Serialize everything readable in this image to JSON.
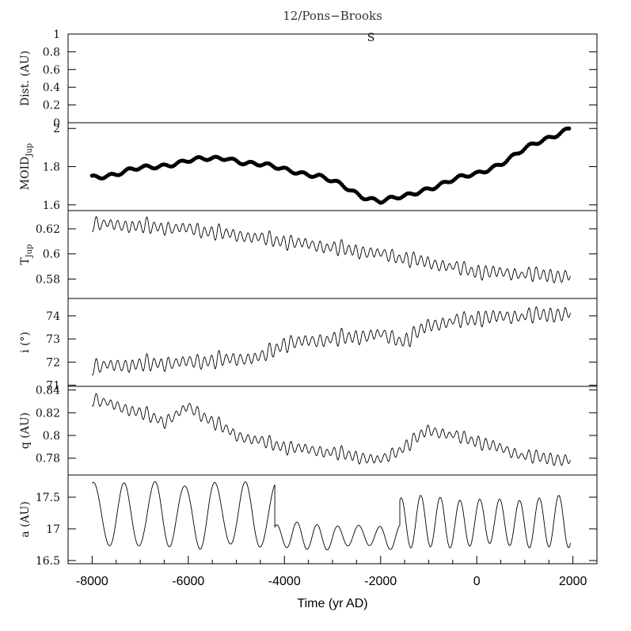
{
  "chart_data": {
    "type": "line",
    "title": "12/Pons−Brooks",
    "xlabel": "Time (yr AD)",
    "xlim": [
      -8500,
      2500
    ],
    "x_ticks": [
      -8000,
      -6000,
      -4000,
      -2000,
      0,
      2000
    ],
    "x_tick_labels": [
      "-8000",
      "-6000",
      "-4000",
      "-2000",
      "0",
      "2000"
    ],
    "line_color": "#000000",
    "panels": [
      {
        "id": "dist",
        "type": "line",
        "ylabel": "Dist. (AU)",
        "ylim": [
          0,
          1
        ],
        "y_ticks": [
          0,
          0.2,
          0.4,
          0.6,
          0.8,
          1
        ],
        "y_tick_labels": [
          "0",
          "0.2",
          "0.4",
          "0.6",
          "0.8",
          "1"
        ],
        "annotation": {
          "text": "S",
          "x": -2200,
          "y": 0.92
        },
        "points": []
      },
      {
        "id": "moid",
        "type": "scatter",
        "ylabel_main": "MOID",
        "ylabel_sub": "Jup",
        "ylim": [
          1.57,
          2.03
        ],
        "y_ticks": [
          1.6,
          1.8,
          2.0
        ],
        "y_tick_labels": [
          "1.6",
          "1.8",
          "2"
        ],
        "series": [
          {
            "name": "MOID",
            "x": [
              -8000,
              -7500,
              -7000,
              -6500,
              -6000,
              -5500,
              -5200,
              -4800,
              -4300,
              -3800,
              -3300,
              -2800,
              -2400,
              -2000,
              -1500,
              -1000,
              -500,
              0,
              500,
              1000,
              1500,
              1950
            ],
            "y": [
              1.75,
              1.76,
              1.79,
              1.81,
              1.83,
              1.84,
              1.85,
              1.82,
              1.8,
              1.78,
              1.75,
              1.7,
              1.65,
              1.62,
              1.64,
              1.69,
              1.73,
              1.76,
              1.82,
              1.89,
              1.95,
              2.01
            ],
            "jitter": 0.016,
            "period": 150
          }
        ]
      },
      {
        "id": "tjup",
        "type": "line",
        "ylabel_main": "T",
        "ylabel_sub": "Jup",
        "ylim": [
          0.5645,
          0.6345
        ],
        "y_ticks": [
          0.58,
          0.6,
          0.62
        ],
        "y_tick_labels": [
          "0.58",
          "0.6",
          "0.62"
        ],
        "series": [
          {
            "name": "TJup",
            "x": [
              -8000,
              -6000,
              -4000,
              -2000,
              0,
              1950
            ],
            "y": [
              0.624,
              0.62,
              0.61,
              0.6,
              0.586,
              0.582
            ],
            "amplitude": 0.006,
            "period": 150
          }
        ]
      },
      {
        "id": "incl",
        "type": "line",
        "ylabel": "i (°)",
        "ylim": [
          70.95,
          74.75
        ],
        "y_ticks": [
          71,
          72,
          73,
          74
        ],
        "y_tick_labels": [
          "71",
          "72",
          "73",
          "74"
        ],
        "series": [
          {
            "name": "i",
            "x": [
              -8000,
              -6000,
              -4500,
              -4000,
              -2000,
              -1500,
              -1000,
              0,
              1950
            ],
            "y": [
              71.8,
              72.0,
              72.2,
              72.8,
              73.2,
              72.9,
              73.6,
              73.9,
              74.1
            ],
            "amplitude": 0.35,
            "period": 150
          }
        ]
      },
      {
        "id": "q",
        "type": "line",
        "ylabel": "q (AU)",
        "ylim": [
          0.7652,
          0.8432
        ],
        "y_ticks": [
          0.78,
          0.8,
          0.82,
          0.84
        ],
        "y_tick_labels": [
          "0.78",
          "0.8",
          "0.82",
          "0.84"
        ],
        "series": [
          {
            "name": "q",
            "x": [
              -8000,
              -7000,
              -6500,
              -6000,
              -5000,
              -4000,
              -3000,
              -2000,
              -1500,
              -1000,
              0,
              1000,
              1950
            ],
            "y": [
              0.832,
              0.82,
              0.812,
              0.825,
              0.8,
              0.79,
              0.785,
              0.778,
              0.79,
              0.805,
              0.795,
              0.782,
              0.778
            ],
            "amplitude": 0.006,
            "period": 150
          }
        ]
      },
      {
        "id": "a",
        "type": "line",
        "ylabel": "a (AU)",
        "ylim": [
          16.45,
          17.85
        ],
        "y_ticks": [
          16.5,
          17,
          17.5
        ],
        "y_tick_labels": [
          "16.5",
          "17",
          "17.5"
        ],
        "series": [
          {
            "name": "a",
            "segments": [
              {
                "x_start": -8000,
                "x_end": -4200,
                "mean": 17.22,
                "amplitude": 0.5,
                "period": 630
              },
              {
                "x_start": -4200,
                "x_end": -1600,
                "mean": 16.88,
                "amplitude": 0.18,
                "period": 430
              },
              {
                "x_start": -1600,
                "x_end": 1950,
                "mean": 17.1,
                "amplitude": 0.38,
                "period": 410
              }
            ]
          }
        ]
      }
    ]
  }
}
